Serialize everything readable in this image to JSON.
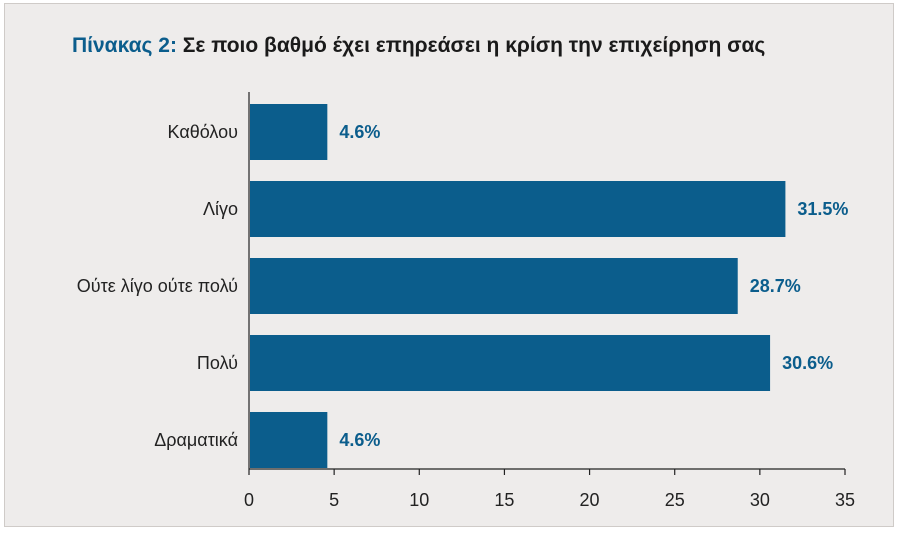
{
  "title": {
    "number": "Πίνακας 2:",
    "text": "Σε ποιο βαθμό έχει επηρεάσει η κρίση την επιχείρηση σας"
  },
  "chart_data": {
    "type": "bar",
    "orientation": "horizontal",
    "categories": [
      "Καθόλου",
      "Λίγο",
      "Ούτε λίγο ούτε πολύ",
      "Πολύ",
      "Δραματικά"
    ],
    "values": [
      4.6,
      31.5,
      28.7,
      30.6,
      4.6
    ],
    "value_labels": [
      "4.6%",
      "31.5%",
      "28.7%",
      "30.6%",
      "4.6%"
    ],
    "xlim": [
      0,
      35
    ],
    "xticks": [
      "0",
      "5",
      "10",
      "15",
      "20",
      "25",
      "30",
      "35"
    ],
    "xlabel": "",
    "ylabel": "",
    "grid": false,
    "bar_color": "#0b5d8c",
    "label_color": "#0b5d8c"
  }
}
